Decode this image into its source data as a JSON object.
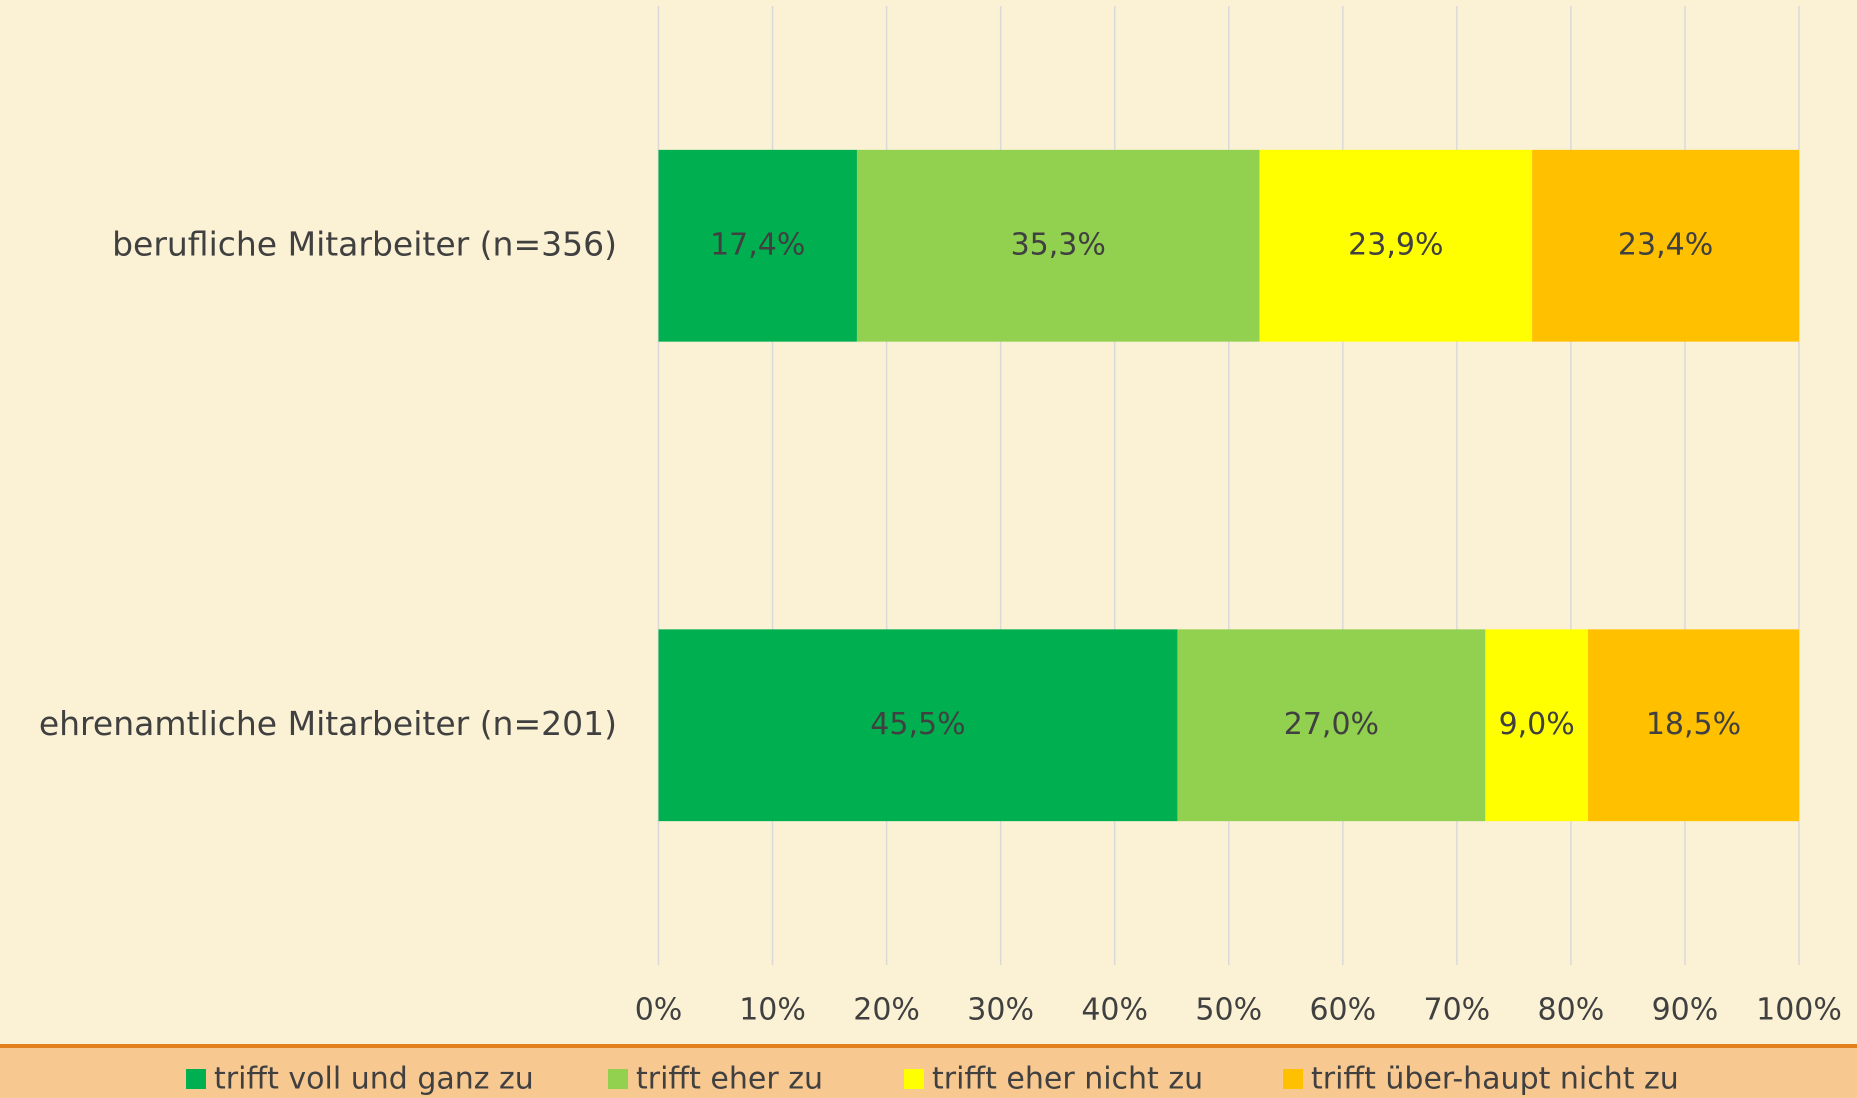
{
  "chart_data": {
    "type": "stacked_barh",
    "categories": [
      "berufliche Mitarbeiter (n=356)",
      "ehrenamtliche Mitarbeiter (n=201)"
    ],
    "series": [
      {
        "name": "trifft voll und ganz zu",
        "color": "#00b050",
        "values": [
          17.4,
          45.5
        ],
        "value_labels": [
          "17,4%",
          "45,5%"
        ]
      },
      {
        "name": "trifft eher zu",
        "color": "#92d050",
        "values": [
          35.3,
          27.0
        ],
        "value_labels": [
          "35,3%",
          "27,0%"
        ]
      },
      {
        "name": "trifft eher nicht zu",
        "color": "#ffff00",
        "values": [
          23.9,
          9.0
        ],
        "value_labels": [
          "23,9%",
          "9,0%"
        ]
      },
      {
        "name": "trifft über-haupt nicht zu",
        "color": "#ffc000",
        "values": [
          23.4,
          18.5
        ],
        "value_labels": [
          "23,4%",
          "18,5%"
        ]
      }
    ],
    "xlim": [
      0,
      100
    ],
    "xticks": [
      {
        "value": 0,
        "label": "0%"
      },
      {
        "value": 10,
        "label": "10%"
      },
      {
        "value": 20,
        "label": "20%"
      },
      {
        "value": 30,
        "label": "30%"
      },
      {
        "value": 40,
        "label": "40%"
      },
      {
        "value": 50,
        "label": "50%"
      },
      {
        "value": 60,
        "label": "60%"
      },
      {
        "value": 70,
        "label": "70%"
      },
      {
        "value": 80,
        "label": "80%"
      },
      {
        "value": 90,
        "label": "90%"
      },
      {
        "value": 100,
        "label": "100%"
      }
    ],
    "grid": true,
    "legend": "bottom"
  }
}
